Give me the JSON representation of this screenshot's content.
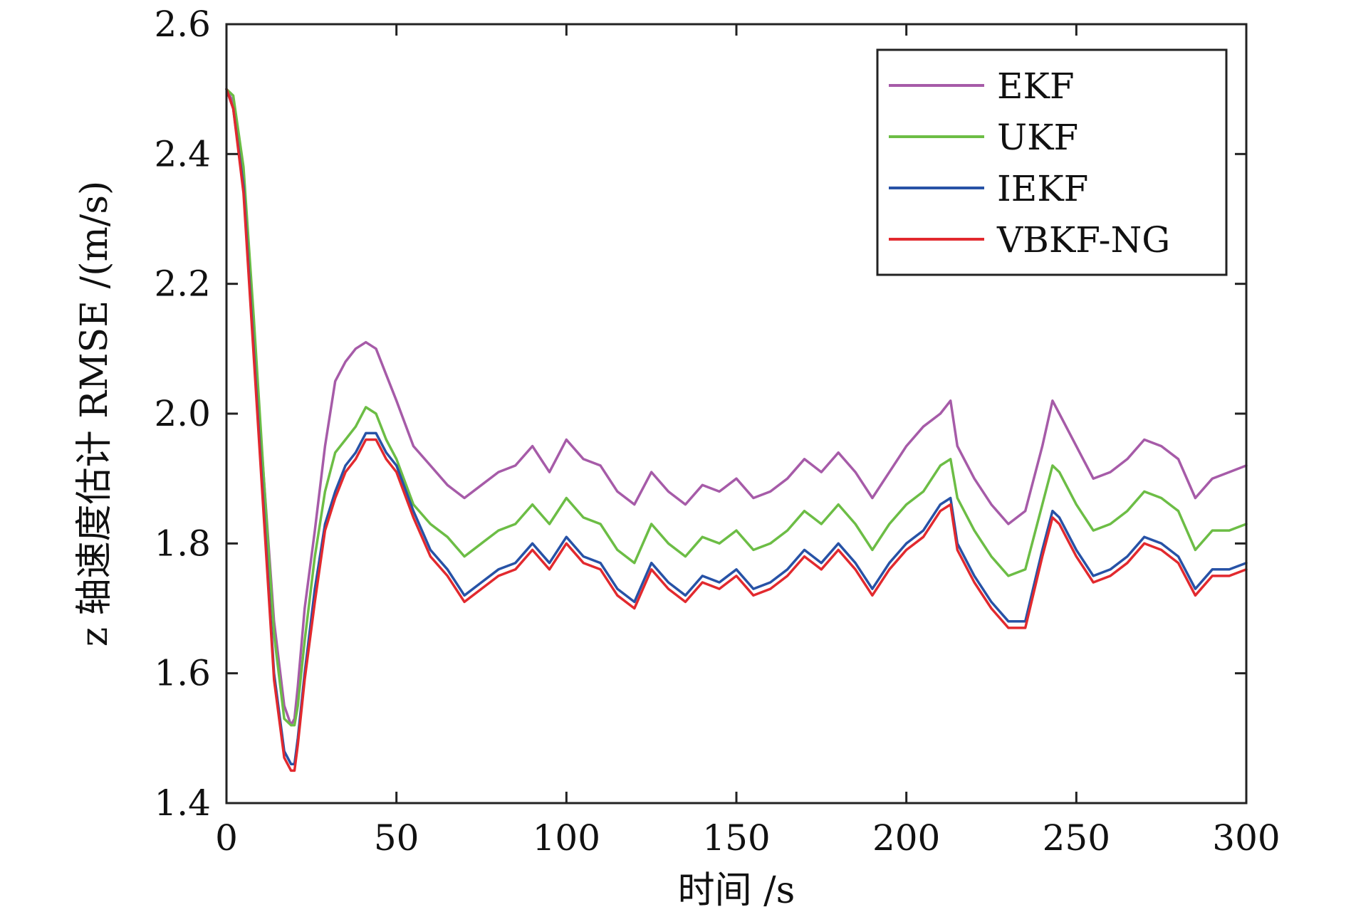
{
  "chart_data": {
    "type": "line",
    "title": "",
    "xlabel": "时间 /s",
    "ylabel": "z 轴速度估计 RMSE /(m/s)",
    "xlim": [
      0,
      300
    ],
    "ylim": [
      1.4,
      2.6
    ],
    "xticks": [
      0,
      50,
      100,
      150,
      200,
      250,
      300
    ],
    "yticks": [
      1.4,
      1.6,
      1.8,
      2.0,
      2.2,
      2.4,
      2.6
    ],
    "xtick_labels": [
      "0",
      "50",
      "100",
      "150",
      "200",
      "250",
      "300"
    ],
    "ytick_labels": [
      "1.4",
      "1.6",
      "1.8",
      "2.0",
      "2.2",
      "2.4",
      "2.6"
    ],
    "grid": false,
    "legend_position": "top-right",
    "x": [
      0,
      2,
      5,
      8,
      11,
      14,
      17,
      19,
      20,
      21,
      23,
      26,
      29,
      32,
      35,
      38,
      41,
      44,
      47,
      50,
      55,
      60,
      65,
      70,
      75,
      80,
      85,
      90,
      95,
      100,
      105,
      110,
      115,
      120,
      125,
      130,
      135,
      140,
      145,
      150,
      155,
      160,
      165,
      170,
      175,
      180,
      185,
      190,
      195,
      200,
      205,
      210,
      213,
      215,
      220,
      225,
      230,
      235,
      240,
      243,
      245,
      250,
      255,
      260,
      265,
      270,
      275,
      280,
      285,
      290,
      295,
      300
    ],
    "series": [
      {
        "name": "EKF",
        "color": "#a65ba8",
        "values": [
          2.5,
          2.48,
          2.35,
          2.12,
          1.9,
          1.68,
          1.55,
          1.52,
          1.53,
          1.58,
          1.7,
          1.82,
          1.95,
          2.05,
          2.08,
          2.1,
          2.11,
          2.1,
          2.06,
          2.02,
          1.95,
          1.92,
          1.89,
          1.87,
          1.89,
          1.91,
          1.92,
          1.95,
          1.91,
          1.96,
          1.93,
          1.92,
          1.88,
          1.86,
          1.91,
          1.88,
          1.86,
          1.89,
          1.88,
          1.9,
          1.87,
          1.88,
          1.9,
          1.93,
          1.91,
          1.94,
          1.91,
          1.87,
          1.91,
          1.95,
          1.98,
          2.0,
          2.02,
          1.95,
          1.9,
          1.86,
          1.83,
          1.85,
          1.95,
          2.02,
          2.0,
          1.95,
          1.9,
          1.91,
          1.93,
          1.96,
          1.95,
          1.93,
          1.87,
          1.9,
          1.91,
          1.92
        ]
      },
      {
        "name": "UKF",
        "color": "#6cbd45",
        "values": [
          2.5,
          2.49,
          2.38,
          2.15,
          1.9,
          1.66,
          1.53,
          1.52,
          1.52,
          1.55,
          1.65,
          1.78,
          1.88,
          1.94,
          1.96,
          1.98,
          2.01,
          2.0,
          1.96,
          1.93,
          1.86,
          1.83,
          1.81,
          1.78,
          1.8,
          1.82,
          1.83,
          1.86,
          1.83,
          1.87,
          1.84,
          1.83,
          1.79,
          1.77,
          1.83,
          1.8,
          1.78,
          1.81,
          1.8,
          1.82,
          1.79,
          1.8,
          1.82,
          1.85,
          1.83,
          1.86,
          1.83,
          1.79,
          1.83,
          1.86,
          1.88,
          1.92,
          1.93,
          1.87,
          1.82,
          1.78,
          1.75,
          1.76,
          1.86,
          1.92,
          1.91,
          1.86,
          1.82,
          1.83,
          1.85,
          1.88,
          1.87,
          1.85,
          1.79,
          1.82,
          1.82,
          1.83
        ]
      },
      {
        "name": "IEKF",
        "color": "#2752a6",
        "values": [
          2.5,
          2.47,
          2.35,
          2.1,
          1.85,
          1.6,
          1.48,
          1.46,
          1.46,
          1.5,
          1.6,
          1.73,
          1.83,
          1.88,
          1.92,
          1.94,
          1.97,
          1.97,
          1.94,
          1.92,
          1.85,
          1.79,
          1.76,
          1.72,
          1.74,
          1.76,
          1.77,
          1.8,
          1.77,
          1.81,
          1.78,
          1.77,
          1.73,
          1.71,
          1.77,
          1.74,
          1.72,
          1.75,
          1.74,
          1.76,
          1.73,
          1.74,
          1.76,
          1.79,
          1.77,
          1.8,
          1.77,
          1.73,
          1.77,
          1.8,
          1.82,
          1.86,
          1.87,
          1.8,
          1.75,
          1.71,
          1.68,
          1.68,
          1.79,
          1.85,
          1.84,
          1.79,
          1.75,
          1.76,
          1.78,
          1.81,
          1.8,
          1.78,
          1.73,
          1.76,
          1.76,
          1.77
        ]
      },
      {
        "name": "VBKF-NG",
        "color": "#e2292e",
        "values": [
          2.5,
          2.47,
          2.34,
          2.09,
          1.84,
          1.59,
          1.47,
          1.45,
          1.45,
          1.49,
          1.59,
          1.71,
          1.82,
          1.87,
          1.91,
          1.93,
          1.96,
          1.96,
          1.93,
          1.91,
          1.84,
          1.78,
          1.75,
          1.71,
          1.73,
          1.75,
          1.76,
          1.79,
          1.76,
          1.8,
          1.77,
          1.76,
          1.72,
          1.7,
          1.76,
          1.73,
          1.71,
          1.74,
          1.73,
          1.75,
          1.72,
          1.73,
          1.75,
          1.78,
          1.76,
          1.79,
          1.76,
          1.72,
          1.76,
          1.79,
          1.81,
          1.85,
          1.86,
          1.79,
          1.74,
          1.7,
          1.67,
          1.67,
          1.78,
          1.84,
          1.83,
          1.78,
          1.74,
          1.75,
          1.77,
          1.8,
          1.79,
          1.77,
          1.72,
          1.75,
          1.75,
          1.76
        ]
      }
    ]
  }
}
